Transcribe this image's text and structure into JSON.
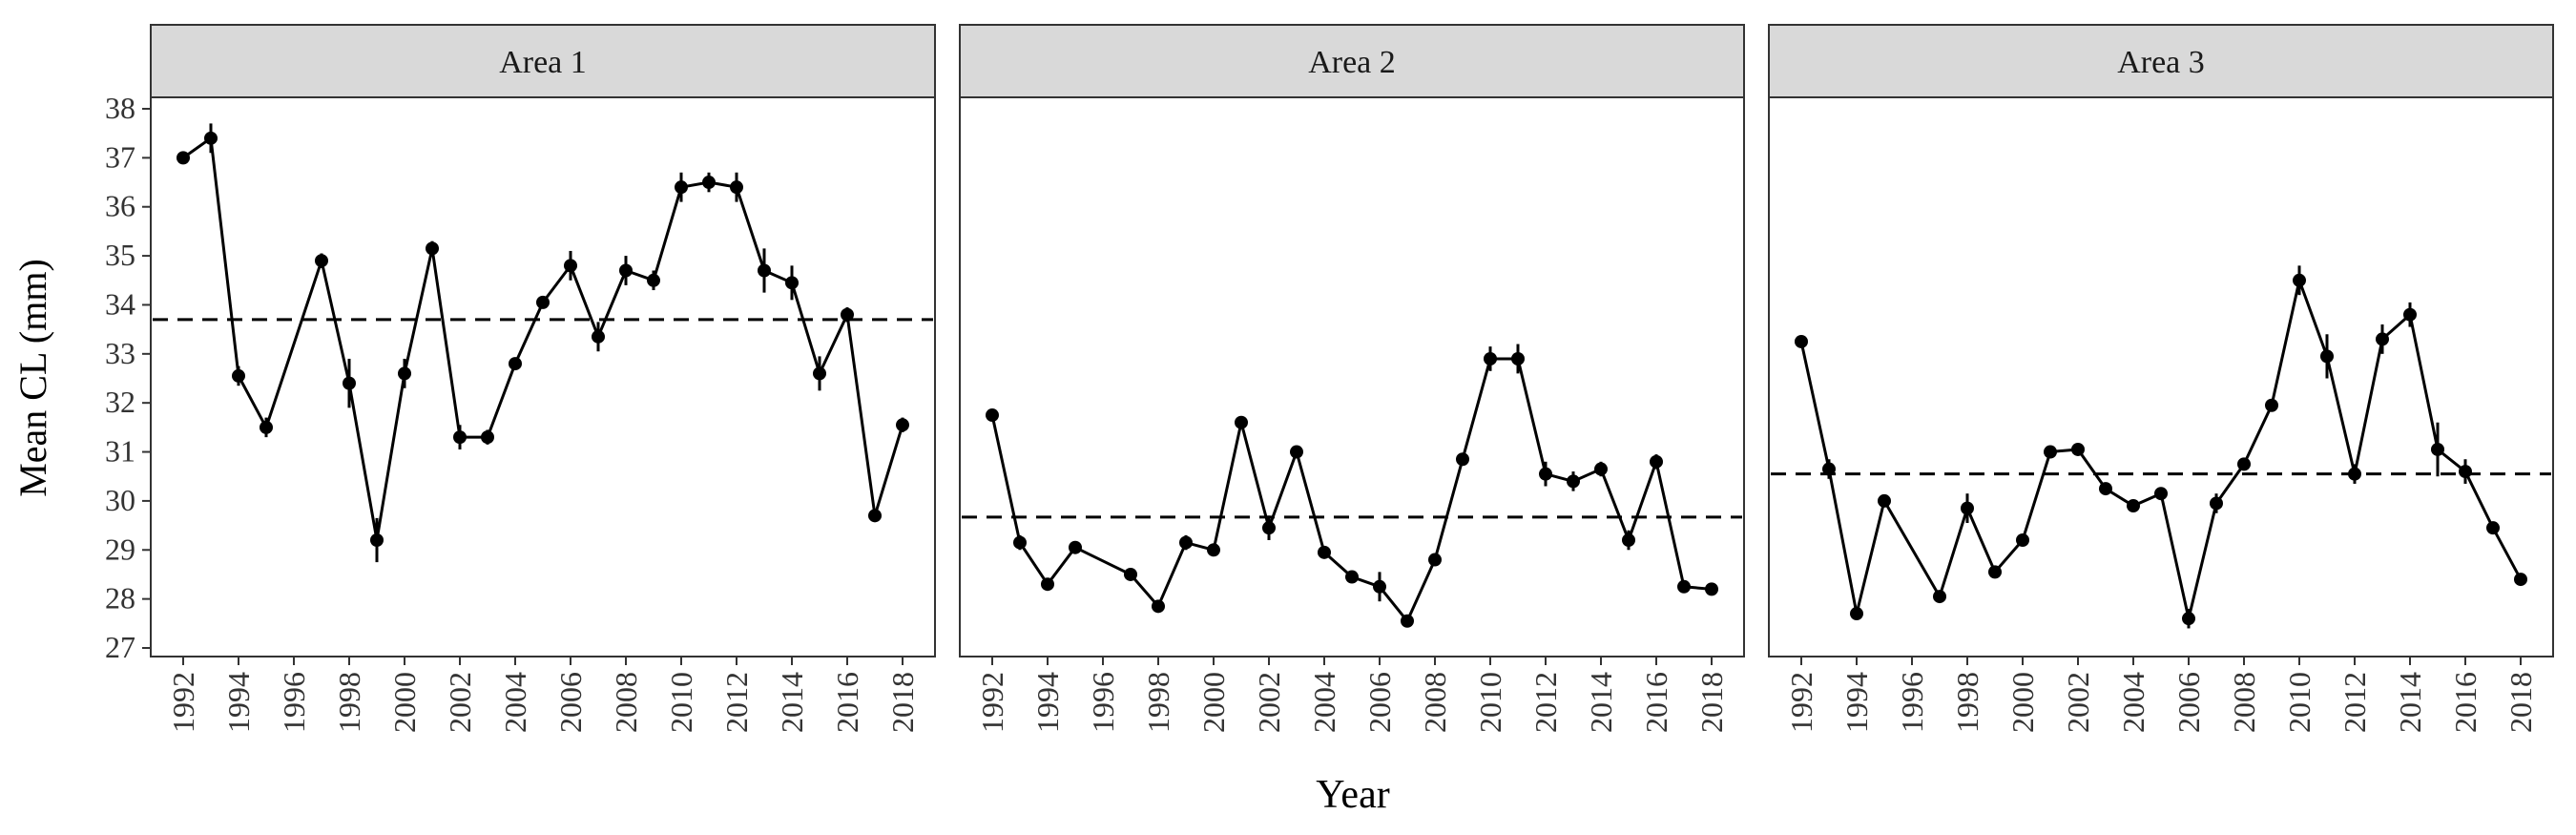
{
  "chart_data": {
    "type": "line",
    "xlabel": "Year",
    "ylabel": "Mean CL (mm)",
    "ylim": [
      27,
      38
    ],
    "xlim": [
      1992,
      2018
    ],
    "y_ticks": [
      27,
      28,
      29,
      30,
      31,
      32,
      33,
      34,
      35,
      36,
      37,
      38
    ],
    "x_ticks": [
      1992,
      1994,
      1996,
      1998,
      2000,
      2002,
      2004,
      2006,
      2008,
      2010,
      2012,
      2014,
      2016,
      2018
    ],
    "grid": false,
    "colors": {
      "line": "#000000",
      "points": "#000000",
      "strip_bg": "#d9d9d9",
      "panel_border": "#333333",
      "reference_line": "#000000"
    },
    "panels": [
      {
        "strip": "Area 1",
        "reference_mean": 33.7,
        "x": [
          1992,
          1993,
          1994,
          1995,
          1997,
          1998,
          1999,
          2000,
          2001,
          2002,
          2003,
          2004,
          2005,
          2006,
          2007,
          2008,
          2009,
          2010,
          2011,
          2012,
          2013,
          2014,
          2015,
          2016,
          2017,
          2018
        ],
        "y": [
          37.0,
          37.4,
          32.55,
          31.5,
          34.9,
          32.4,
          29.2,
          32.6,
          35.15,
          31.3,
          31.3,
          32.8,
          34.05,
          34.8,
          33.35,
          34.7,
          34.5,
          36.4,
          36.5,
          36.4,
          34.7,
          34.45,
          32.6,
          33.8,
          29.7,
          31.55
        ],
        "error": [
          0.1,
          0.3,
          0.2,
          0.2,
          0.15,
          0.5,
          0.45,
          0.3,
          0.15,
          0.25,
          0.15,
          0.1,
          0.1,
          0.3,
          0.3,
          0.3,
          0.2,
          0.3,
          0.2,
          0.3,
          0.45,
          0.35,
          0.35,
          0.15,
          0.1,
          0.15
        ]
      },
      {
        "strip": "Area 2",
        "reference_mean": 29.67,
        "x": [
          1992,
          1993,
          1994,
          1995,
          1997,
          1998,
          1999,
          2000,
          2001,
          2002,
          2003,
          2004,
          2005,
          2006,
          2007,
          2008,
          2009,
          2010,
          2011,
          2012,
          2013,
          2014,
          2015,
          2016,
          2017,
          2018
        ],
        "y": [
          31.75,
          29.15,
          28.3,
          29.05,
          28.5,
          27.85,
          29.15,
          29.0,
          31.6,
          29.45,
          31.0,
          28.95,
          28.45,
          28.25,
          27.55,
          28.8,
          30.85,
          32.9,
          32.9,
          30.55,
          30.4,
          30.65,
          29.2,
          30.8,
          28.25,
          28.2
        ],
        "error": [
          0.1,
          0.15,
          0.1,
          0.1,
          0.1,
          0.1,
          0.15,
          0.1,
          0.1,
          0.25,
          0.1,
          0.1,
          0.1,
          0.3,
          0.1,
          0.1,
          0.1,
          0.25,
          0.3,
          0.25,
          0.2,
          0.15,
          0.2,
          0.15,
          0.1,
          0.1
        ]
      },
      {
        "strip": "Area 3",
        "reference_mean": 30.55,
        "x": [
          1992,
          1993,
          1994,
          1995,
          1997,
          1998,
          1999,
          2000,
          2001,
          2002,
          2003,
          2004,
          2005,
          2006,
          2007,
          2008,
          2009,
          2010,
          2011,
          2012,
          2013,
          2014,
          2015,
          2016,
          2017,
          2018
        ],
        "y": [
          33.25,
          30.65,
          27.7,
          30.0,
          28.05,
          29.85,
          28.55,
          29.2,
          31.0,
          31.05,
          30.25,
          29.9,
          30.15,
          27.6,
          29.95,
          30.75,
          31.95,
          34.5,
          32.95,
          30.55,
          33.3,
          33.8,
          31.05,
          30.6,
          29.45,
          28.4
        ],
        "error": [
          0.1,
          0.2,
          0.1,
          0.1,
          0.1,
          0.3,
          0.1,
          0.1,
          0.1,
          0.1,
          0.1,
          0.1,
          0.1,
          0.2,
          0.2,
          0.1,
          0.1,
          0.3,
          0.45,
          0.2,
          0.3,
          0.25,
          0.55,
          0.25,
          0.1,
          0.1
        ]
      }
    ]
  }
}
